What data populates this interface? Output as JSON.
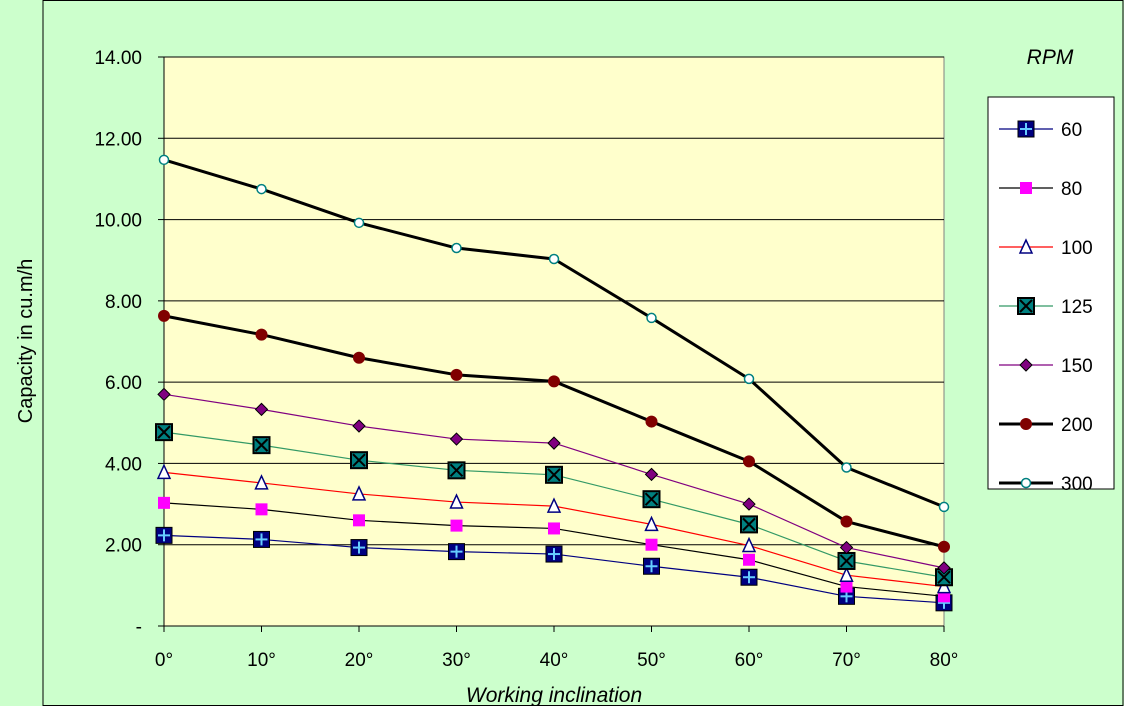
{
  "colors": {
    "background": "#ccffcc",
    "plot_area": "#ffffcc",
    "legend_bg": "#ffffff",
    "gridline": "#000000"
  },
  "chart_data": {
    "type": "line",
    "title": "",
    "xlabel": "Working inclination",
    "ylabel": "Capacity in cu.m/h",
    "categories": [
      "0°",
      "10°",
      "20°",
      "30°",
      "40°",
      "50°",
      "60°",
      "70°",
      "80°"
    ],
    "ylim": [
      0,
      14
    ],
    "yticks": [
      {
        "value": 0,
        "label": "-"
      },
      {
        "value": 2,
        "label": "2.00"
      },
      {
        "value": 4,
        "label": "4.00"
      },
      {
        "value": 6,
        "label": "6.00"
      },
      {
        "value": 8,
        "label": "8.00"
      },
      {
        "value": 10,
        "label": "10.00"
      },
      {
        "value": 12,
        "label": "12.00"
      },
      {
        "value": 14,
        "label": "14.00"
      }
    ],
    "grid": "horizontal",
    "legend": {
      "title": "RPM",
      "position": "right"
    },
    "series": [
      {
        "name": "60",
        "color": "#000080",
        "marker": "square-plus",
        "marker_color": "#000080",
        "width": 1.2,
        "values": [
          2.23,
          2.13,
          1.93,
          1.83,
          1.77,
          1.47,
          1.2,
          0.73,
          0.57
        ]
      },
      {
        "name": "80",
        "color": "#000000",
        "marker": "square",
        "marker_color": "#ff00ff",
        "width": 1.2,
        "values": [
          3.03,
          2.87,
          2.6,
          2.47,
          2.4,
          2.0,
          1.63,
          0.97,
          0.73
        ]
      },
      {
        "name": "100",
        "color": "#ff0000",
        "marker": "triangle",
        "marker_color": "#000080",
        "width": 1.2,
        "values": [
          3.78,
          3.52,
          3.25,
          3.05,
          2.95,
          2.5,
          1.98,
          1.25,
          0.97
        ]
      },
      {
        "name": "125",
        "color": "#339966",
        "marker": "square-x",
        "marker_color": "#008080",
        "width": 1.2,
        "values": [
          4.77,
          4.45,
          4.08,
          3.83,
          3.72,
          3.12,
          2.5,
          1.6,
          1.2
        ]
      },
      {
        "name": "150",
        "color": "#800080",
        "marker": "diamond",
        "marker_color": "#800080",
        "width": 1.2,
        "values": [
          5.7,
          5.33,
          4.92,
          4.6,
          4.5,
          3.73,
          3.0,
          1.93,
          1.43
        ]
      },
      {
        "name": "200",
        "color": "#000000",
        "marker": "circle",
        "marker_color": "#800000",
        "width": 3,
        "values": [
          7.63,
          7.17,
          6.6,
          6.18,
          6.02,
          5.03,
          4.05,
          2.57,
          1.95
        ]
      },
      {
        "name": "300",
        "color": "#000000",
        "marker": "circle-open",
        "marker_color": "#008080",
        "width": 3,
        "values": [
          11.47,
          10.75,
          9.92,
          9.3,
          9.03,
          7.58,
          6.08,
          3.9,
          2.93
        ]
      }
    ]
  }
}
